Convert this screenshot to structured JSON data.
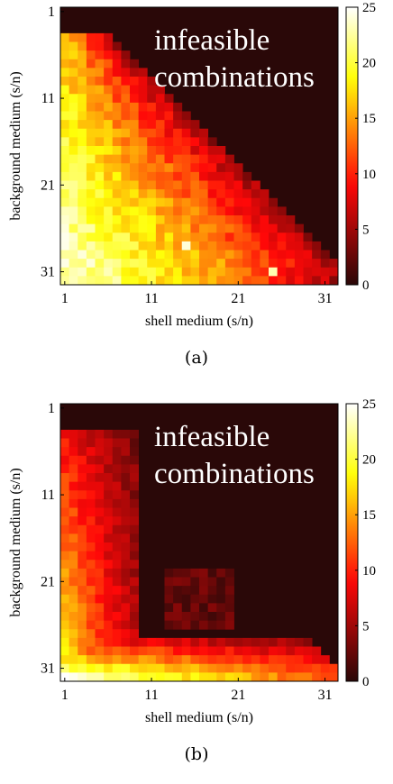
{
  "colors": {
    "colormap": "hot"
  },
  "chart_data": [
    {
      "type": "heatmap",
      "panel": "(a)",
      "annotation": [
        "infeasible",
        "combinations"
      ],
      "xlabel": "shell medium (s/n)",
      "ylabel": "background medium (s/n)",
      "xticks": [
        "1",
        "11",
        "21",
        "31"
      ],
      "yticks": [
        "1",
        "11",
        "21",
        "31"
      ],
      "grid_size": 32,
      "colorbar": {
        "range": [
          0,
          25
        ],
        "ticks": [
          "0",
          "5",
          "10",
          "15",
          "20",
          "25"
        ]
      },
      "description": "lower-left triangle of feasible combinations; high values near bottom-left, decreasing toward diagonal; upper-right infeasible region",
      "hotspots": [
        {
          "x": 14,
          "y": 27,
          "value": 24
        },
        {
          "x": 24,
          "y": 30,
          "value": 23
        }
      ]
    },
    {
      "type": "heatmap",
      "panel": "(b)",
      "annotation": [
        "infeasible",
        "combinations"
      ],
      "xlabel": "shell medium (s/n)",
      "ylabel": "background medium (s/n)",
      "xticks": [
        "1",
        "11",
        "21",
        "31"
      ],
      "yticks": [
        "1",
        "11",
        "21",
        "31"
      ],
      "grid_size": 32,
      "colorbar": {
        "range": [
          0,
          25
        ],
        "ticks": [
          "0",
          "5",
          "10",
          "15",
          "20",
          "25"
        ]
      },
      "description": "values concentrated along left columns and bottom rows; interior mostly near zero",
      "hotspots": []
    }
  ],
  "captions": [
    "(a)",
    "(b)"
  ]
}
